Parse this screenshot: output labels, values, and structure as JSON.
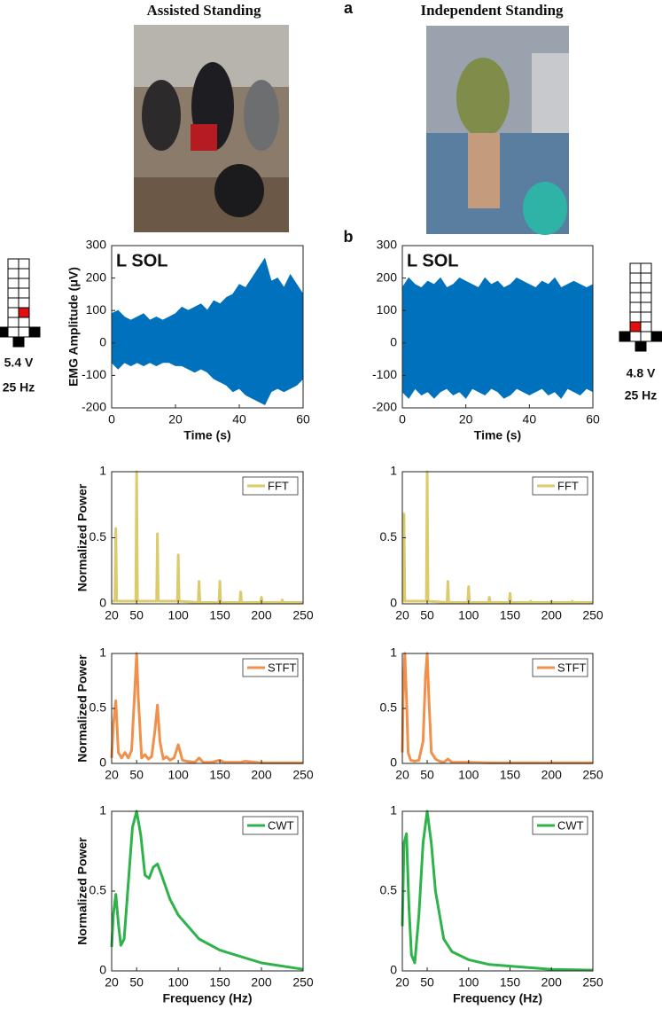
{
  "figure": {
    "panel_labels": [
      "a",
      "b"
    ],
    "photos": [
      {
        "title": "Assisted Standing"
      },
      {
        "title": "Independent Standing"
      }
    ],
    "stimulation": [
      {
        "voltage": "5.4 V",
        "frequency": "25 Hz"
      },
      {
        "voltage": "4.8 V",
        "frequency": "25 Hz"
      }
    ]
  },
  "chart_data": [
    {
      "type": "band",
      "annotation": "L SOL",
      "ylabel": "EMG Amplitude (μV)",
      "xlabel": "Time (s)",
      "color": "#0072bd",
      "x": [
        0,
        2,
        4,
        6,
        8,
        10,
        12,
        14,
        16,
        18,
        20,
        22,
        24,
        26,
        28,
        30,
        32,
        34,
        36,
        38,
        40,
        42,
        44,
        46,
        48,
        50,
        52,
        54,
        56,
        58,
        60
      ],
      "upper": [
        90,
        100,
        80,
        70,
        80,
        90,
        70,
        80,
        70,
        80,
        90,
        110,
        100,
        110,
        120,
        100,
        130,
        120,
        140,
        150,
        180,
        170,
        200,
        230,
        260,
        190,
        200,
        170,
        210,
        180,
        150
      ],
      "lower": [
        -60,
        -80,
        -60,
        -70,
        -60,
        -70,
        -60,
        -70,
        -60,
        -60,
        -70,
        -70,
        -80,
        -90,
        -80,
        -90,
        -110,
        -120,
        -130,
        -150,
        -140,
        -160,
        -170,
        -180,
        -190,
        -150,
        -140,
        -150,
        -140,
        -130,
        -110
      ],
      "xlim": [
        0,
        60
      ],
      "xticks": [
        0,
        20,
        40,
        60
      ],
      "ylim": [
        -200,
        300
      ],
      "yticks": [
        -200,
        -100,
        0,
        100,
        200,
        300
      ]
    },
    {
      "type": "band",
      "annotation": "L SOL",
      "xlabel": "Time (s)",
      "color": "#0072bd",
      "x": [
        0,
        2,
        4,
        6,
        8,
        10,
        12,
        14,
        16,
        18,
        20,
        22,
        24,
        26,
        28,
        30,
        32,
        34,
        36,
        38,
        40,
        42,
        44,
        46,
        48,
        50,
        52,
        54,
        56,
        58,
        60
      ],
      "upper": [
        170,
        200,
        180,
        170,
        190,
        180,
        200,
        170,
        180,
        200,
        190,
        180,
        170,
        200,
        180,
        190,
        170,
        180,
        200,
        190,
        180,
        170,
        190,
        180,
        200,
        170,
        180,
        190,
        180,
        170,
        180
      ],
      "lower": [
        -150,
        -170,
        -140,
        -160,
        -150,
        -170,
        -150,
        -140,
        -160,
        -150,
        -170,
        -140,
        -150,
        -160,
        -140,
        -150,
        -170,
        -160,
        -140,
        -150,
        -160,
        -150,
        -140,
        -160,
        -150,
        -170,
        -140,
        -150,
        -160,
        -140,
        -150
      ],
      "xlim": [
        0,
        60
      ],
      "xticks": [
        0,
        20,
        40,
        60
      ],
      "ylim": [
        -200,
        300
      ],
      "yticks": [
        -200,
        -100,
        0,
        100,
        200,
        300
      ]
    },
    {
      "type": "line",
      "ylabel": "Normalized Power",
      "x": [
        20,
        24,
        25,
        26,
        49,
        50,
        51,
        74,
        75,
        76,
        99,
        100,
        101,
        124,
        125,
        126,
        149,
        150,
        151,
        174,
        175,
        176,
        199,
        200,
        201,
        224,
        225,
        226,
        250
      ],
      "series": [
        {
          "name": "FFT",
          "color": "#dccb6c",
          "values": [
            0.02,
            0.02,
            0.57,
            0.02,
            0.02,
            1,
            0.02,
            0.02,
            0.53,
            0.02,
            0.02,
            0.37,
            0.02,
            0.01,
            0.17,
            0.01,
            0.01,
            0.17,
            0.01,
            0.01,
            0.09,
            0.01,
            0.01,
            0.05,
            0.01,
            0.01,
            0.03,
            0.01,
            0.01
          ]
        }
      ],
      "xlim": [
        20,
        250
      ],
      "xticks": [
        20,
        50,
        100,
        150,
        200,
        250
      ],
      "ylim": [
        0,
        1
      ],
      "yticks": [
        0,
        0.5,
        1
      ]
    },
    {
      "type": "line",
      "x": [
        20,
        21,
        22,
        23,
        49,
        50,
        51,
        74,
        75,
        76,
        99,
        100,
        101,
        124,
        125,
        126,
        149,
        150,
        151,
        174,
        175,
        176,
        199,
        200,
        201,
        224,
        225,
        226,
        250
      ],
      "series": [
        {
          "name": "FFT",
          "color": "#dccb6c",
          "values": [
            0.02,
            0.02,
            0.68,
            0.02,
            0.02,
            1,
            0.02,
            0.01,
            0.17,
            0.01,
            0.01,
            0.13,
            0.01,
            0.01,
            0.05,
            0.01,
            0.01,
            0.08,
            0.01,
            0.01,
            0.02,
            0.01,
            0.01,
            0.02,
            0.01,
            0.01,
            0.02,
            0.01,
            0.01
          ]
        }
      ],
      "xlim": [
        20,
        250
      ],
      "xticks": [
        20,
        50,
        100,
        150,
        200,
        250
      ],
      "ylim": [
        0,
        1
      ],
      "yticks": [
        0,
        0.5,
        1
      ]
    },
    {
      "type": "line",
      "ylabel": "Normalized Power",
      "x": [
        20,
        22,
        25,
        28,
        32,
        36,
        40,
        44,
        48,
        50,
        52,
        56,
        60,
        64,
        68,
        72,
        75,
        78,
        82,
        86,
        90,
        95,
        100,
        105,
        110,
        120,
        125,
        130,
        140,
        150,
        155,
        160,
        175,
        180,
        200,
        250
      ],
      "series": [
        {
          "name": "STFT",
          "color": "#f0904a",
          "values": [
            0.05,
            0.35,
            0.57,
            0.1,
            0.05,
            0.1,
            0.05,
            0.12,
            0.7,
            1,
            0.6,
            0.05,
            0.08,
            0.04,
            0.06,
            0.3,
            0.53,
            0.2,
            0.04,
            0.06,
            0.03,
            0.05,
            0.17,
            0.03,
            0.02,
            0.01,
            0.05,
            0.01,
            0.01,
            0.03,
            0.01,
            0.01,
            0.01,
            0.02,
            0.005,
            0.005
          ]
        }
      ],
      "xlim": [
        20,
        250
      ],
      "xticks": [
        20,
        50,
        100,
        150,
        200,
        250
      ],
      "ylim": [
        0,
        1
      ],
      "yticks": [
        0,
        0.5,
        1
      ]
    },
    {
      "type": "line",
      "x": [
        20,
        21,
        23,
        25,
        27,
        30,
        35,
        40,
        45,
        48,
        50,
        52,
        55,
        60,
        65,
        70,
        75,
        80,
        90,
        100,
        125,
        150,
        200,
        250
      ],
      "series": [
        {
          "name": "STFT",
          "color": "#f0904a",
          "values": [
            0.1,
            0.6,
            1,
            0.6,
            0.1,
            0.03,
            0.02,
            0.03,
            0.2,
            0.8,
            1,
            0.6,
            0.1,
            0.04,
            0.02,
            0.01,
            0.04,
            0.01,
            0.01,
            0.01,
            0.005,
            0.005,
            0.005,
            0.005
          ]
        }
      ],
      "xlim": [
        20,
        250
      ],
      "xticks": [
        20,
        50,
        100,
        150,
        200,
        250
      ],
      "ylim": [
        0,
        1
      ],
      "yticks": [
        0,
        0.5,
        1
      ]
    },
    {
      "type": "line",
      "ylabel": "Normalized Power",
      "xlabel": "Frequency (Hz)",
      "x": [
        20,
        22,
        25,
        28,
        31,
        35,
        40,
        45,
        50,
        55,
        60,
        65,
        70,
        75,
        80,
        90,
        100,
        125,
        150,
        200,
        250
      ],
      "series": [
        {
          "name": "CWT",
          "color": "#2eb34b",
          "values": [
            0.15,
            0.35,
            0.48,
            0.3,
            0.16,
            0.2,
            0.55,
            0.9,
            1,
            0.85,
            0.6,
            0.58,
            0.65,
            0.67,
            0.6,
            0.45,
            0.35,
            0.2,
            0.13,
            0.05,
            0.01
          ]
        }
      ],
      "xlim": [
        20,
        250
      ],
      "xticks": [
        20,
        50,
        100,
        150,
        200,
        250
      ],
      "ylim": [
        0,
        1
      ],
      "yticks": [
        0,
        0.5,
        1
      ]
    },
    {
      "type": "line",
      "xlabel": "Frequency (Hz)",
      "x": [
        20,
        22,
        25,
        28,
        31,
        35,
        40,
        45,
        50,
        55,
        60,
        70,
        80,
        100,
        125,
        150,
        200,
        250
      ],
      "series": [
        {
          "name": "CWT",
          "color": "#2eb34b",
          "values": [
            0.28,
            0.8,
            0.86,
            0.4,
            0.1,
            0.05,
            0.35,
            0.8,
            1,
            0.8,
            0.5,
            0.2,
            0.12,
            0.07,
            0.04,
            0.03,
            0.01,
            0.005
          ]
        }
      ],
      "xlim": [
        20,
        250
      ],
      "xticks": [
        20,
        50,
        100,
        150,
        200,
        250
      ],
      "ylim": [
        0,
        1
      ],
      "yticks": [
        0,
        0.5,
        1
      ]
    }
  ]
}
